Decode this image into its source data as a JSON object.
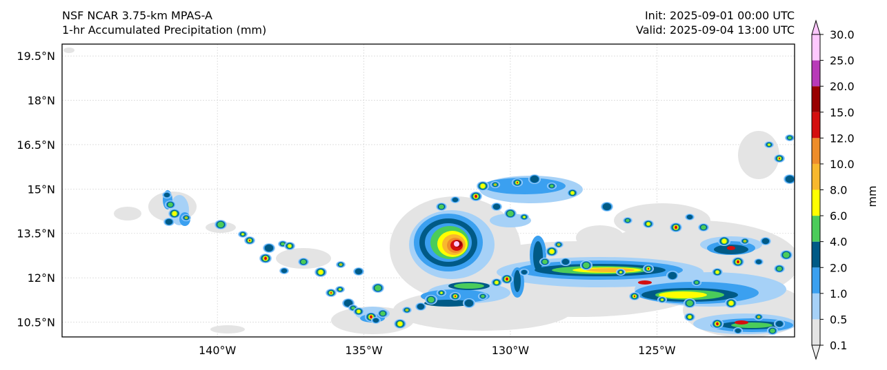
{
  "header": {
    "model": "NSF NCAR 3.75-km MPAS-A",
    "field": "1-hr Accumulated Precipitation (mm)",
    "init": "Init: 2025-09-01 00:00 UTC",
    "valid": "Valid: 2025-09-04 13:00 UTC"
  },
  "map": {
    "lon_range": [
      -145.3,
      -120.3
    ],
    "lat_range": [
      10.0,
      19.9
    ],
    "lon_ticks": [
      {
        "value": -140,
        "label": "140°W"
      },
      {
        "value": -135,
        "label": "135°W"
      },
      {
        "value": -130,
        "label": "130°W"
      },
      {
        "value": -125,
        "label": "125°W"
      }
    ],
    "lat_ticks": [
      {
        "value": 10.5,
        "label": "10.5°N"
      },
      {
        "value": 12.0,
        "label": "12°N"
      },
      {
        "value": 13.5,
        "label": "13.5°N"
      },
      {
        "value": 15.0,
        "label": "15°N"
      },
      {
        "value": 16.5,
        "label": "16.5°N"
      },
      {
        "value": 18.0,
        "label": "18°N"
      },
      {
        "value": 19.5,
        "label": "19.5°N"
      }
    ],
    "gridlines": true
  },
  "colorbar": {
    "unit": "mm",
    "extend": "both",
    "levels": [
      {
        "label": "0.1",
        "color": "#e4e4e4"
      },
      {
        "label": "0.5",
        "color": "#a6d1f7"
      },
      {
        "label": "1.0",
        "color": "#3ba0f0"
      },
      {
        "label": "2.0",
        "color": "#005a86"
      },
      {
        "label": "4.0",
        "color": "#4bcc5a"
      },
      {
        "label": "6.0",
        "color": "#ffff00"
      },
      {
        "label": "8.0",
        "color": "#f8b82e"
      },
      {
        "label": "10.0",
        "color": "#ee8d2a"
      },
      {
        "label": "12.0",
        "color": "#d40f0f"
      },
      {
        "label": "15.0",
        "color": "#990000"
      },
      {
        "label": "20.0",
        "color": "#b83ab8"
      },
      {
        "label": "25.0",
        "color": "#ffc8ff"
      },
      {
        "label": "30.0",
        "color": ""
      }
    ],
    "under_color": "#eeeeee",
    "over_color": "#ffc8ff"
  }
}
